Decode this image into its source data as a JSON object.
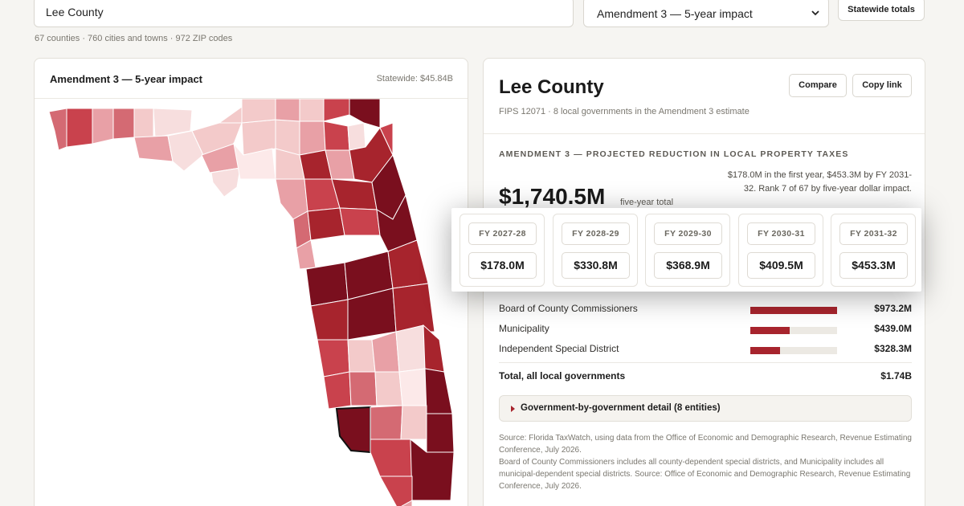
{
  "search": {
    "value": "Lee County"
  },
  "measure_select": {
    "selected": "Amendment 3 — 5-year impact"
  },
  "statewide_button": "Statewide totals",
  "coverage_meta": "67 counties · 760 cities and towns · 972 ZIP codes",
  "map_card": {
    "title": "Amendment 3 — 5-year impact",
    "statewide_total": "Statewide: $45.84B"
  },
  "county": {
    "name": "Lee County",
    "subtitle": "FIPS 12071 · 8 local governments in the Amendment 3 estimate",
    "compare_label": "Compare",
    "copy_label": "Copy link",
    "section_label": "AMENDMENT 3 — PROJECTED REDUCTION IN LOCAL PROPERTY TAXES",
    "five_year_total": "$1,740.5M",
    "five_year_label": "five-year total",
    "note": "$178.0M in the first year, $453.3M by FY 2031-32. Rank 7 of 67 by five-year dollar impact."
  },
  "fiscal_years": [
    {
      "label": "FY 2027-28",
      "value": "$178.0M"
    },
    {
      "label": "FY 2028-29",
      "value": "$330.8M"
    },
    {
      "label": "FY 2029-30",
      "value": "$368.9M"
    },
    {
      "label": "FY 2030-31",
      "value": "$409.5M"
    },
    {
      "label": "FY 2031-32",
      "value": "$453.3M"
    }
  ],
  "breakdown": [
    {
      "label": "Board of County Commissioners",
      "amount": "$973.2M",
      "share": 1.0
    },
    {
      "label": "Municipality",
      "amount": "$439.0M",
      "share": 0.45
    },
    {
      "label": "Independent Special District",
      "amount": "$328.3M",
      "share": 0.34
    }
  ],
  "total_row": {
    "label": "Total, all local governments",
    "amount": "$1.74B"
  },
  "detail_toggle": "Government-by-government detail (8 entities)",
  "source_text": "Source: Florida TaxWatch, using data from the Office of Economic and Demographic Research, Revenue Estimating Conference, July 2026.",
  "footnote_text": "Board of County Commissioners includes all county-dependent special districts, and Municipality includes all municipal-dependent special districts. Source: Office of Economic and Demographic Research, Revenue Estimating Conference, July 2026.",
  "colors": {
    "accent": "#a7242d",
    "darkest": "#7a0f1e",
    "lightest": "#f7dede"
  },
  "icons": [
    "chevron-down-icon",
    "disclosure-triangle-icon"
  ]
}
